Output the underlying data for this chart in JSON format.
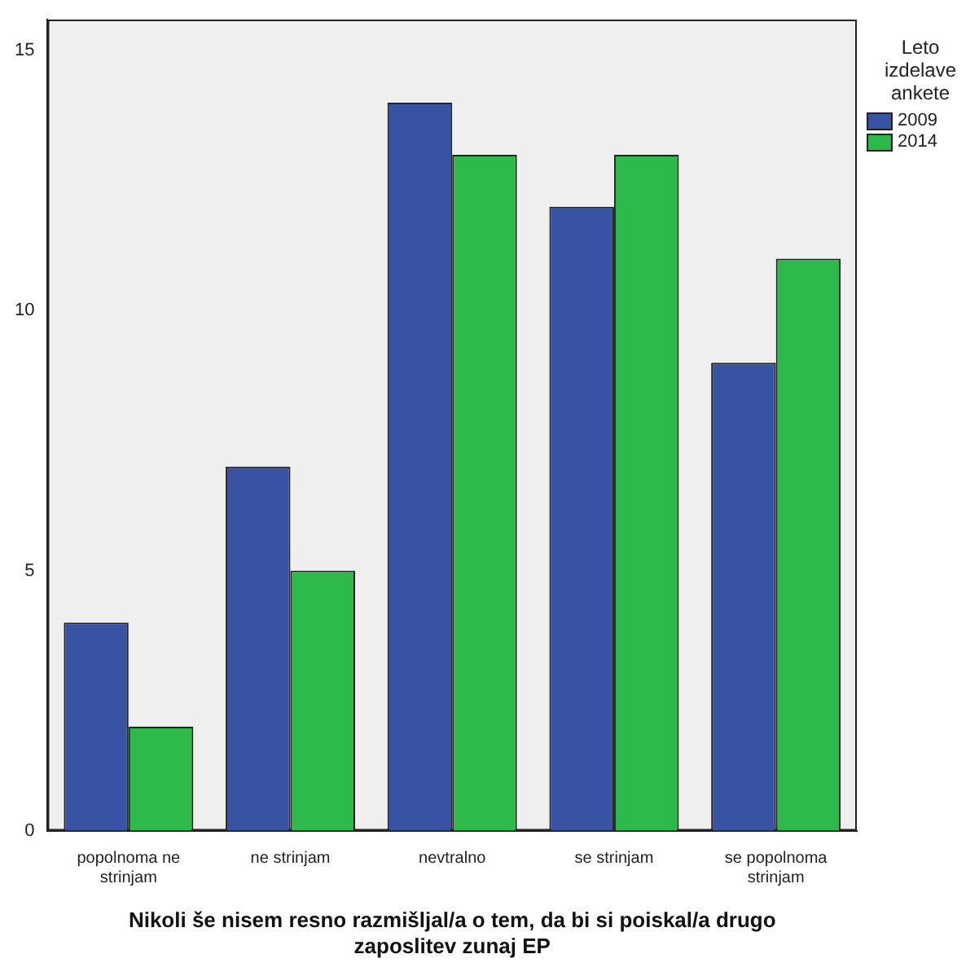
{
  "chart_data": {
    "type": "bar",
    "xlabel": "Nikoli še nisem resno razmišljal/a o tem, da bi si poiskal/a drugo zaposlitev zunaj EP",
    "legend_title": "Leto izdelave ankete",
    "categories": [
      "popolnoma ne strinjam",
      "ne strinjam",
      "nevtralno",
      "se strinjam",
      "se popolnoma strinjam"
    ],
    "series": [
      {
        "name": "2009",
        "color": "#3953a4",
        "values": [
          4,
          7,
          14,
          12,
          9
        ]
      },
      {
        "name": "2014",
        "color": "#2db84a",
        "values": [
          2,
          5,
          13,
          13,
          11
        ]
      }
    ],
    "ylim": [
      0,
      15.6
    ],
    "yticks": [
      0,
      5,
      10,
      15
    ],
    "grid": false,
    "legend": "right"
  }
}
